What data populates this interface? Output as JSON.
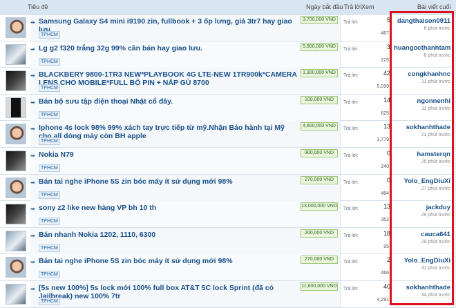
{
  "headers": {
    "title": "Tiêu đề",
    "start_date": "Ngày bắt đầu",
    "replies": "Trả lời",
    "views": "Xem",
    "last_post": "Bài viết cuối"
  },
  "rows": [
    {
      "title": "Samsung Galaxy S4 mini i9190 zin, fullbook + 3 ốp lưng, giá 3tr7 hay giao lưu",
      "tag": "TPHCM",
      "price": "3,700,000 VND",
      "reply_label": "Trả lời:",
      "replies": "5",
      "views": "467",
      "last_user": "dangthaison0911",
      "last_time": "6 phút trước",
      "thumb": "face"
    },
    {
      "title": "Lg g2 f320 trắng 32g 99% cần bán hay giao lưu.",
      "tag": "TPHCM",
      "price": "5,900,000 VND",
      "reply_label": "Trả lời:",
      "replies": "3",
      "views": "225",
      "last_user": "huangocthanhtam",
      "last_time": "8 phút trước",
      "thumb": "normal"
    },
    {
      "title": "BLACKBERY 9800-1TR3 NEW*PLAYBOOK 4G LTE-NEW 1TR900k*CAMERA LENS CHO MOBILE*FULL BỘ PIN + NẮP GÙ 8700",
      "tag": "TPHCM",
      "price": "1,300,000 VND",
      "reply_label": "Trả lời:",
      "replies": "42",
      "views": "5,099",
      "last_user": "congkhanhnc",
      "last_time": "11 phút trước",
      "thumb": "dark"
    },
    {
      "title": "Bán bộ sưu tập điện thoại Nhật cổ đây.",
      "tag": "TPHCM",
      "price": "100,000 VND",
      "reply_label": "Trả lời:",
      "replies": "14",
      "views": "625",
      "last_user": "ngonnenhi",
      "last_time": "11 phút trước",
      "thumb": "phone"
    },
    {
      "title": "Iphone 4s lock 98% 99% xách tay trực tiếp từ mỹ.Nhận Bảo hành tại Mỹ cho all dòng máy còn BH apple",
      "tag": "TPHCM",
      "price": "4,600,000 VND",
      "reply_label": "Trả lời:",
      "replies": "13",
      "views": "1,779",
      "last_user": "sokhanhthade",
      "last_time": "21 phút trước",
      "thumb": "face"
    },
    {
      "title": "Nokia N79",
      "tag": "TPHCM",
      "price": "900,000 VND",
      "reply_label": "Trả lời:",
      "replies": "0",
      "views": "240",
      "last_user": "hamsterqn",
      "last_time": "25 phút trước",
      "thumb": "dark"
    },
    {
      "title": "Bán tai nghe iPhone 5S zin bóc máy ít sử dụng mới 98%",
      "tag": "TPHCM",
      "price": "270,000 VND",
      "reply_label": "Trả lời:",
      "replies": "0",
      "views": "484",
      "last_user": "Yolo_EngDiuXi",
      "last_time": "27 phút trước",
      "thumb": "face"
    },
    {
      "title": "sony z2 like new hàng VP bh 10 th",
      "tag": "TPHCM",
      "price": "13,000,000 VND",
      "reply_label": "Trả lời:",
      "replies": "13",
      "views": "352",
      "last_user": "jackduy",
      "last_time": "29 phút trước",
      "thumb": "dark"
    },
    {
      "title": "Bán nhanh Nokia 1202, 1110, 6300",
      "tag": "TPHCM",
      "price": "200,000 VND",
      "reply_label": "Trả lời:",
      "replies": "18",
      "views": "95",
      "last_user": "cauca641",
      "last_time": "29 phút trước",
      "thumb": "normal"
    },
    {
      "title": "Bán tai nghe iPhone 5S zin bóc máy ít sử dụng mới 98%",
      "tag": "TPHCM",
      "price": "270,000 VND",
      "reply_label": "Trả lời:",
      "replies": "2",
      "views": "466",
      "last_user": "Yolo_EngDiuXi",
      "last_time": "31 phút trước",
      "thumb": "face"
    },
    {
      "title": "[5s new 100%] 5s lock mới 100% full box AT&T 5C lock Sprint (đã có Jailbreak) new 100% 7tr",
      "tag": "TPHCM",
      "price": "11,600,000 VND",
      "reply_label": "Trả lời:",
      "replies": "40",
      "views": "4,291",
      "last_user": "sokhanhthade",
      "last_time": "34 phút trước",
      "thumb": "normal"
    }
  ]
}
